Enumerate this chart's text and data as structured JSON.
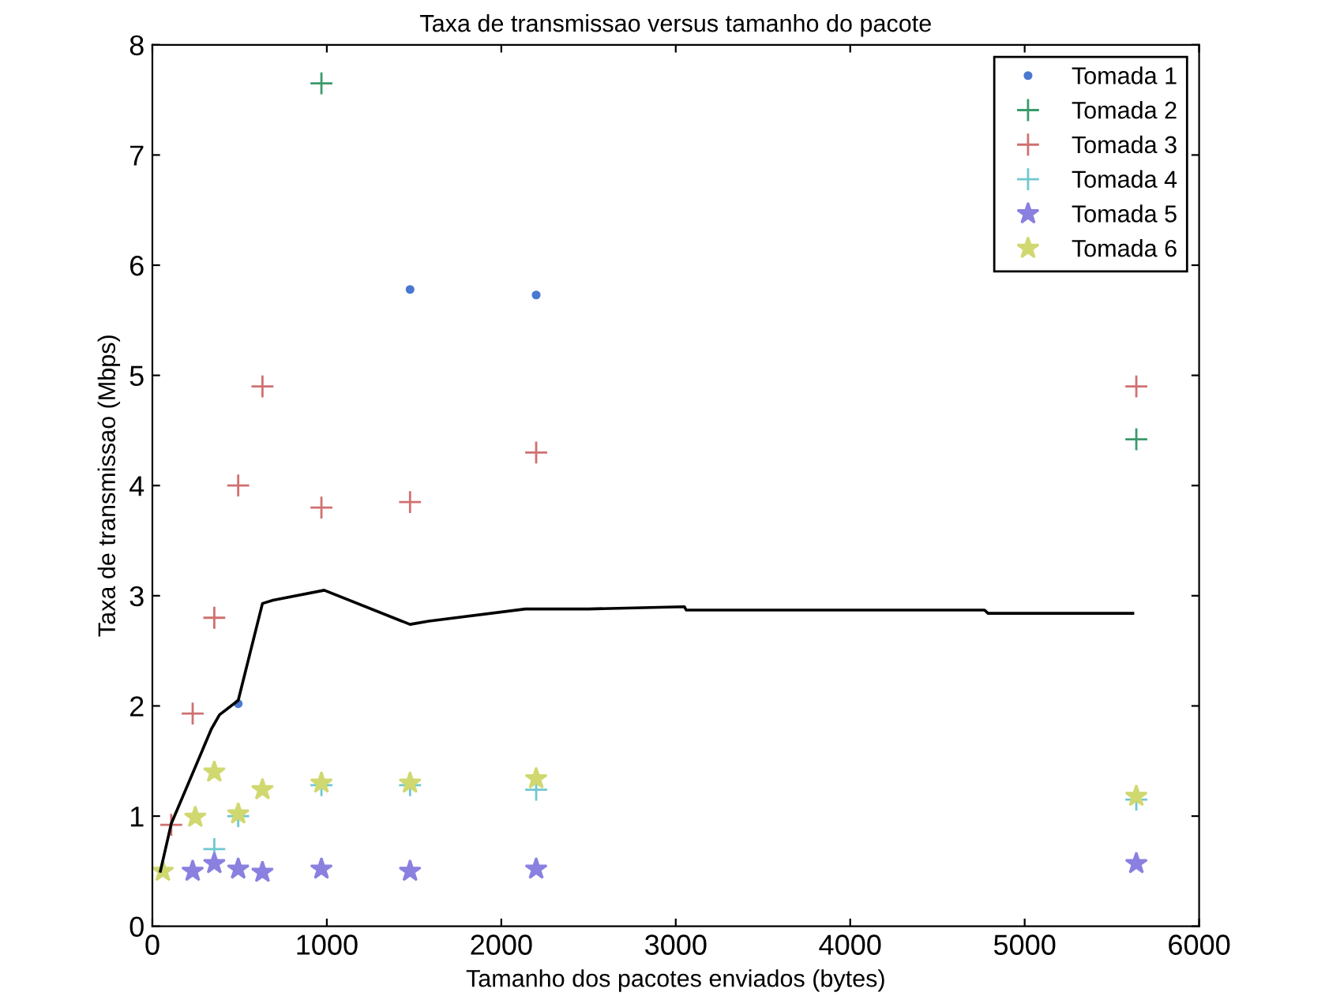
{
  "chart_data": {
    "type": "scatter",
    "title": "Taxa de transmissao versus tamanho do pacote",
    "xlabel": "Tamanho dos pacotes enviados (bytes)",
    "ylabel": "Taxa de transmissao (Mbps)",
    "xlim": [
      0,
      6000
    ],
    "xticks": [
      0,
      1000,
      2000,
      3000,
      4000,
      5000,
      6000
    ],
    "ylim": [
      0,
      8
    ],
    "yticks": [
      0,
      1,
      2,
      3,
      4,
      5,
      6,
      7,
      8
    ],
    "grid": false,
    "legend": "top right",
    "series": [
      {
        "name": "Tomada 1",
        "color": "#4a78d0",
        "marker": "circle",
        "x": [
          492,
          1477,
          2200
        ],
        "values": [
          2.02,
          5.78,
          5.73
        ]
      },
      {
        "name": "Tomada 2",
        "color": "#3a9a6a",
        "marker": "cross",
        "x": [
          969,
          5640
        ],
        "values": [
          7.65,
          4.42
        ]
      },
      {
        "name": "Tomada 3",
        "color": "#d07070",
        "marker": "cross",
        "x": [
          108,
          231,
          355,
          492,
          631,
          969,
          1477,
          2200,
          5640
        ],
        "values": [
          0.92,
          1.93,
          2.8,
          4.0,
          4.9,
          3.8,
          3.85,
          4.3,
          4.9
        ]
      },
      {
        "name": "Tomada 4",
        "color": "#70c8d0",
        "marker": "cross",
        "x": [
          355,
          492,
          969,
          1477,
          2200,
          5640
        ],
        "values": [
          0.7,
          1.0,
          1.28,
          1.28,
          1.24,
          1.15
        ]
      },
      {
        "name": "Tomada 5",
        "color": "#8a80e0",
        "marker": "star",
        "x": [
          231,
          355,
          492,
          631,
          969,
          1477,
          2200,
          5640
        ],
        "values": [
          0.5,
          0.57,
          0.52,
          0.49,
          0.52,
          0.5,
          0.52,
          0.57
        ]
      },
      {
        "name": "Tomada 6",
        "color": "#d0d870",
        "marker": "star",
        "x": [
          60,
          246,
          355,
          492,
          631,
          969,
          1477,
          2200,
          5640
        ],
        "values": [
          0.5,
          0.99,
          1.4,
          1.02,
          1.24,
          1.3,
          1.3,
          1.34,
          1.18
        ]
      },
      {
        "type": "line",
        "color": "#000000",
        "marker": "none",
        "x": [
          46,
          108,
          338,
          385,
          492,
          631,
          692,
          985,
          1477,
          1585,
          2138,
          2500,
          3050,
          3060,
          4770,
          4790,
          5620
        ],
        "values": [
          0.5,
          0.93,
          1.79,
          1.92,
          2.05,
          2.93,
          2.96,
          3.05,
          2.74,
          2.77,
          2.88,
          2.88,
          2.9,
          2.87,
          2.87,
          2.84,
          2.84
        ]
      }
    ]
  }
}
